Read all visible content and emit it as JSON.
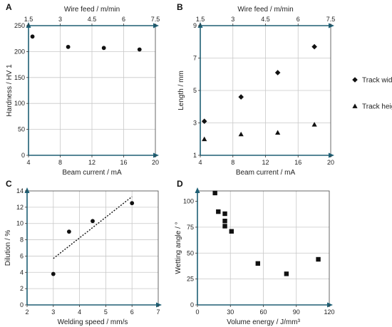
{
  "colors": {
    "axis": "#1e5f74",
    "grid": "#c8c8c8",
    "marker": "#111111"
  },
  "chart_data": [
    {
      "panel": "A",
      "type": "scatter",
      "xlabel": "Beam current / mA",
      "ylabel": "Hardness / HV 1",
      "x2label": "Wire feed / m/min",
      "xlim": [
        4,
        20
      ],
      "ylim": [
        0,
        250
      ],
      "xticks": [
        "4",
        "8",
        "12",
        "16",
        "20"
      ],
      "yticks": [
        "0",
        "50",
        "100",
        "150",
        "200",
        "250"
      ],
      "x2lim": [
        1.5,
        7.5
      ],
      "x2ticks": [
        "1.5",
        "3",
        "4.5",
        "6",
        "7.5"
      ],
      "grid": true,
      "series": [
        {
          "marker": "circle",
          "x": [
            4.5,
            9,
            13.5,
            18
          ],
          "y": [
            229,
            209,
            207,
            204
          ]
        }
      ]
    },
    {
      "panel": "B",
      "type": "scatter",
      "xlabel": "Beam current / mA",
      "ylabel": "Length / mm",
      "x2label": "Wire feed / m/min",
      "xlim": [
        4,
        20
      ],
      "ylim": [
        1,
        9
      ],
      "xticks": [
        "4",
        "8",
        "12",
        "16",
        "20"
      ],
      "yticks": [
        "1",
        "3",
        "5",
        "7",
        "9"
      ],
      "x2lim": [
        1.5,
        7.5
      ],
      "x2ticks": [
        "1.5",
        "3",
        "4.5",
        "6",
        "7.5"
      ],
      "grid": true,
      "legend": "right",
      "series": [
        {
          "name": "Track width",
          "marker": "diamond",
          "x": [
            4.5,
            9,
            13.5,
            18
          ],
          "y": [
            3.1,
            4.6,
            6.1,
            7.7
          ]
        },
        {
          "name": "Track height",
          "marker": "triangle",
          "x": [
            4.5,
            9,
            13.5,
            18
          ],
          "y": [
            2.0,
            2.3,
            2.4,
            2.9
          ]
        }
      ]
    },
    {
      "panel": "C",
      "type": "scatter",
      "xlabel": "Welding speed / mm/s",
      "ylabel": "Dilution / %",
      "xlim": [
        2,
        7
      ],
      "ylim": [
        0,
        14
      ],
      "xticks": [
        "2",
        "3",
        "4",
        "5",
        "6",
        "7"
      ],
      "yticks": [
        "0",
        "2",
        "4",
        "6",
        "8",
        "10",
        "12",
        "14"
      ],
      "grid": true,
      "series": [
        {
          "marker": "circle",
          "x": [
            3,
            3.6,
            4.5,
            6
          ],
          "y": [
            3.8,
            9.0,
            10.3,
            12.5
          ]
        }
      ],
      "trendline": {
        "x": [
          3,
          6
        ],
        "y": [
          5.7,
          13.3
        ]
      }
    },
    {
      "panel": "D",
      "type": "scatter",
      "xlabel": "Volume energy / J/mm³",
      "ylabel": "Wetting angle / °",
      "xlim": [
        0,
        120
      ],
      "ylim": [
        0,
        110
      ],
      "xticks": [
        "0",
        "30",
        "60",
        "90",
        "120"
      ],
      "yticks": [
        "0",
        "25",
        "50",
        "75",
        "100"
      ],
      "grid": true,
      "series": [
        {
          "marker": "square",
          "x": [
            16,
            19,
            25,
            25,
            25,
            31,
            55,
            81,
            110
          ],
          "y": [
            108,
            90,
            88,
            81,
            76,
            71,
            40,
            30,
            44
          ]
        }
      ]
    }
  ]
}
